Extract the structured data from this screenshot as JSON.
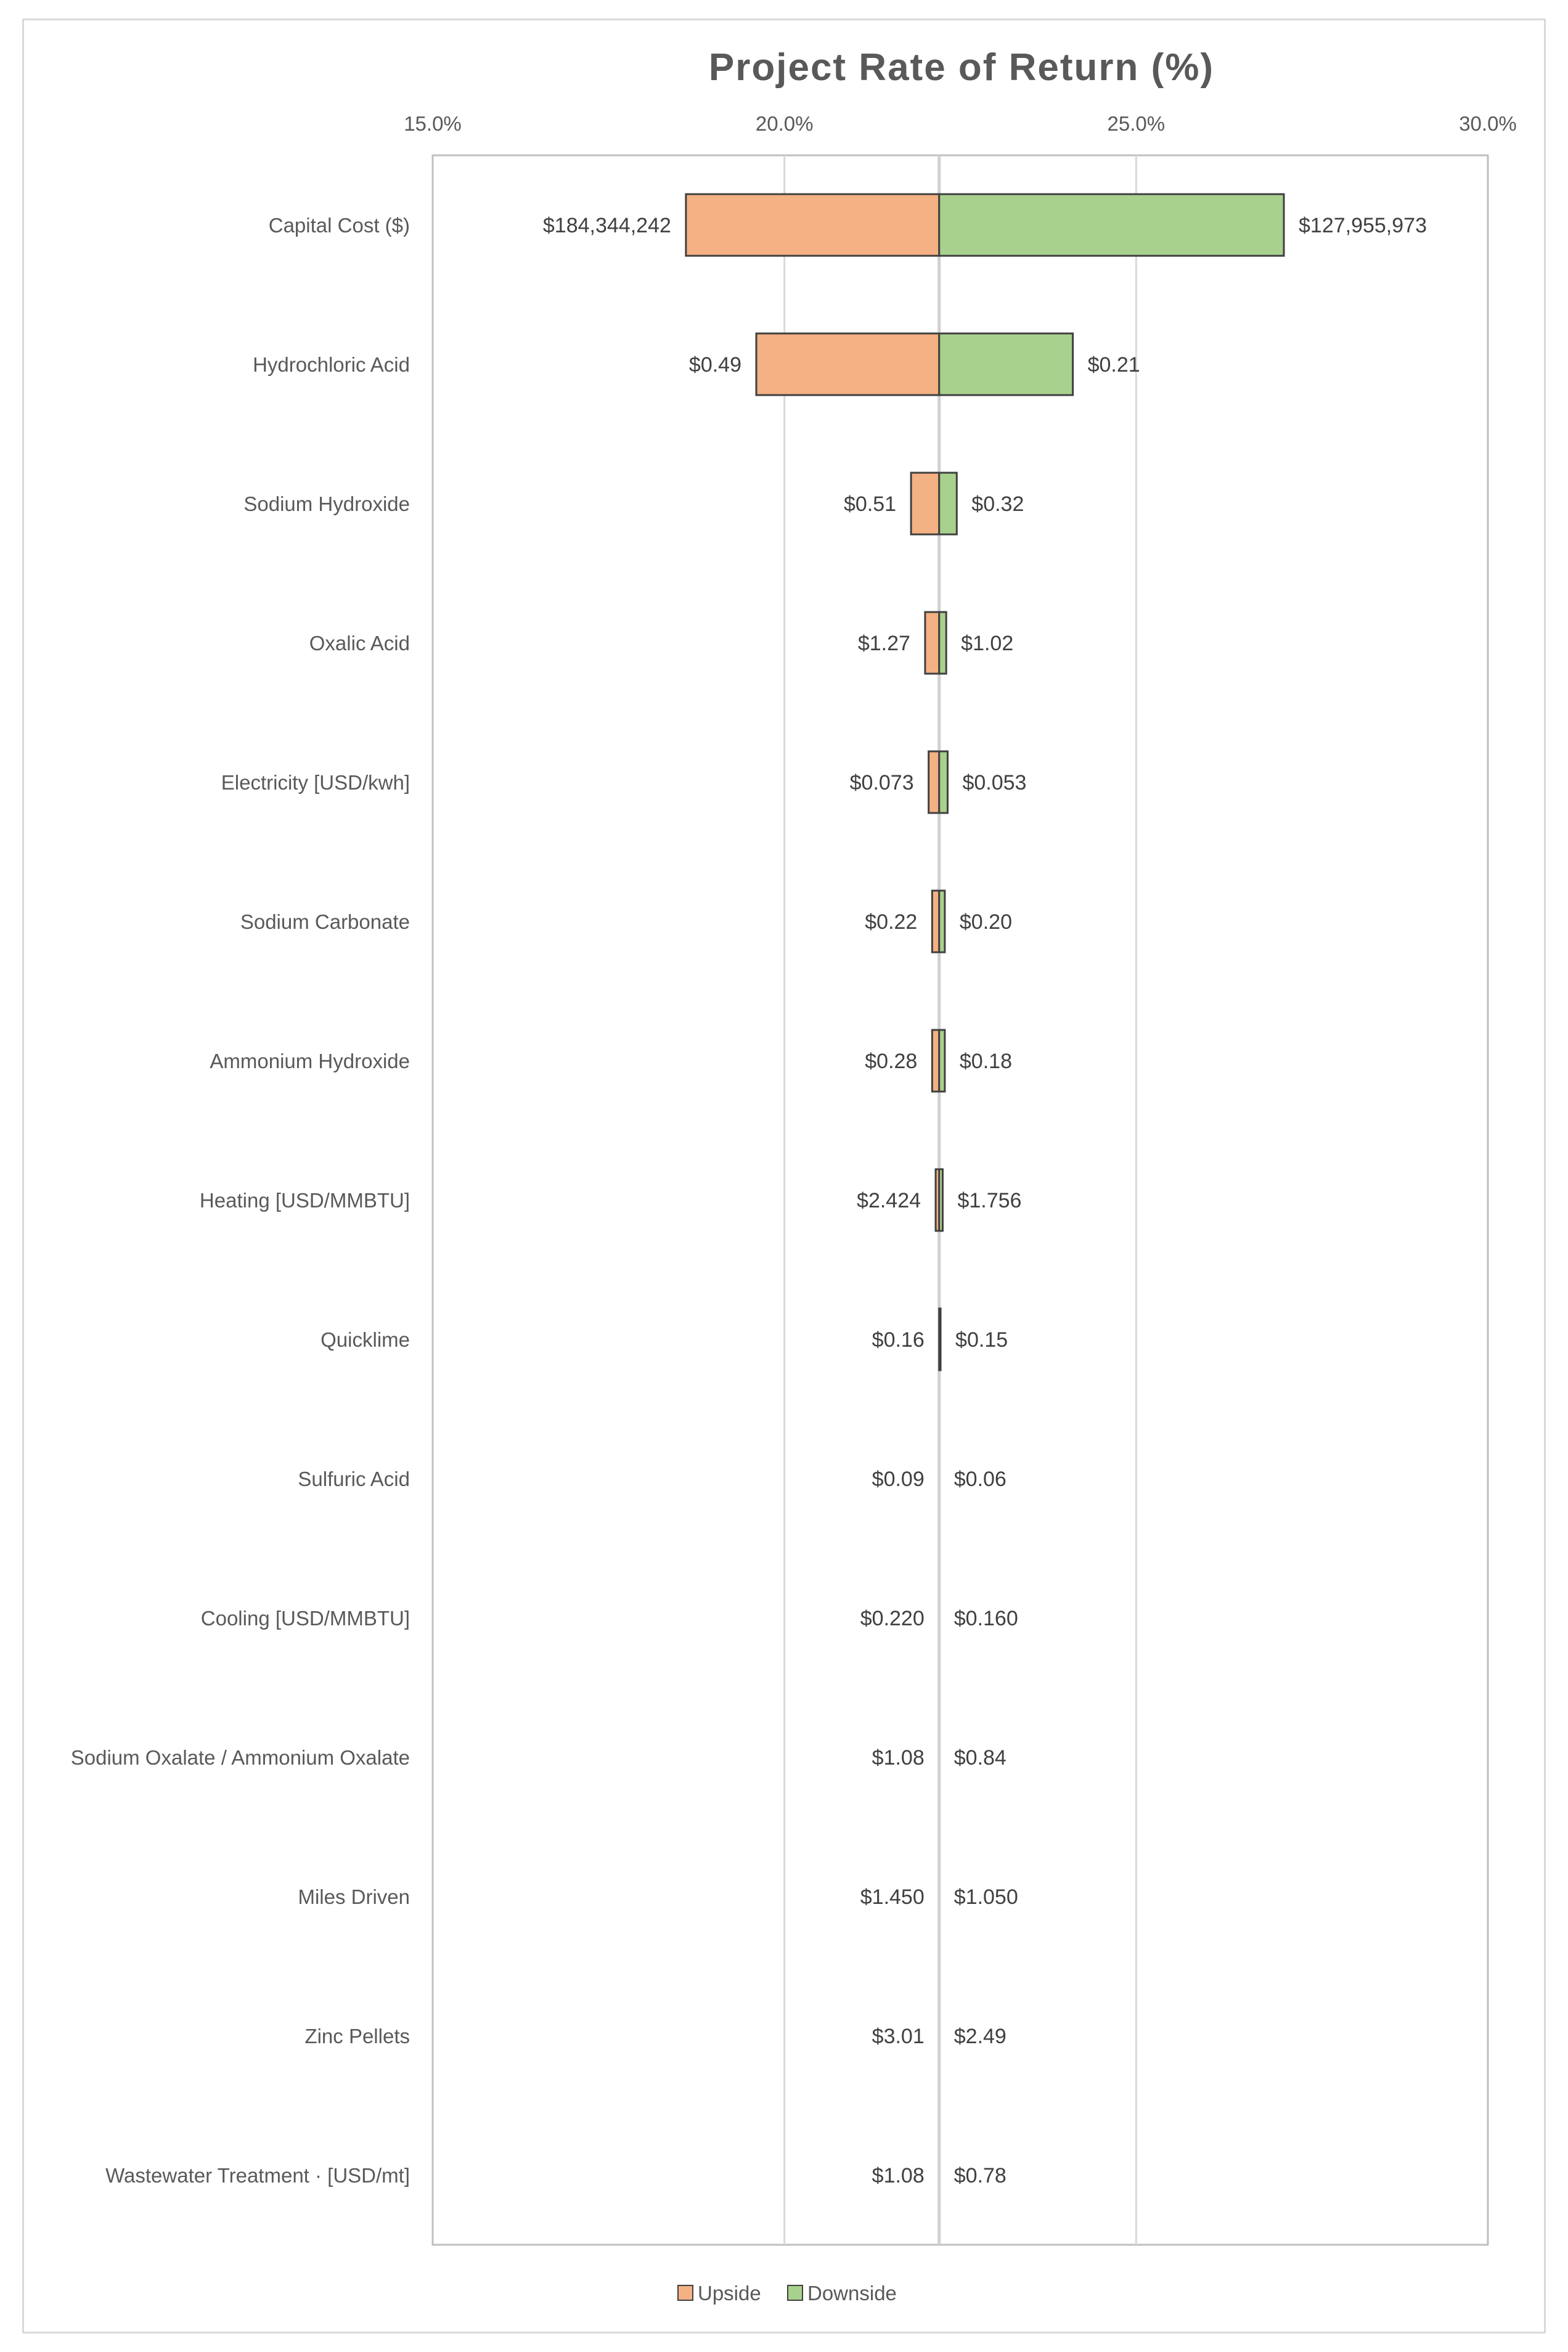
{
  "chart_data": {
    "type": "bar",
    "orientation": "horizontal",
    "subtype": "tornado",
    "title": "Project Rate of Return (%)",
    "x_axis": {
      "position": "top",
      "range": [
        15.0,
        30.0
      ],
      "ticks": [
        "15.0%",
        "20.0%",
        "25.0%",
        "30.0%"
      ],
      "tick_values": [
        15.0,
        20.0,
        25.0,
        30.0
      ],
      "gridlines": true
    },
    "base_value": 22.2,
    "categories": [
      "Capital Cost ($)",
      "Hydrochloric Acid",
      "Sodium Hydroxide",
      "Oxalic Acid",
      "Electricity [USD/kwh]",
      "Sodium Carbonate",
      "Ammonium Hydroxide",
      "Heating [USD/MMBTU]",
      "Quicklime",
      "Sulfuric Acid",
      "Cooling [USD/MMBTU]",
      "Sodium Oxalate / Ammonium Oxalate",
      "Miles Driven",
      "Zinc Pellets",
      "Wastewater Treatment · [USD/mt]"
    ],
    "series": [
      {
        "name": "Upside",
        "color": "#f4b183",
        "values": [
          18.6,
          19.6,
          21.8,
          22.0,
          22.05,
          22.1,
          22.1,
          22.15,
          22.2,
          22.2,
          22.2,
          22.2,
          22.2,
          22.2,
          22.2
        ],
        "labels": [
          "$184,344,242",
          "$0.49",
          "$0.51",
          "$1.27",
          "$0.073",
          "$0.22",
          "$0.28",
          "$2.424",
          "$0.16",
          "$0.09",
          "$0.220",
          "$1.08",
          "$1.450",
          "$3.01",
          "$1.08"
        ]
      },
      {
        "name": "Downside",
        "color": "#a9d18e",
        "values": [
          27.1,
          24.1,
          22.45,
          22.3,
          22.32,
          22.28,
          22.28,
          22.25,
          22.22,
          22.2,
          22.2,
          22.2,
          22.2,
          22.2,
          22.2
        ],
        "labels": [
          "$127,955,973",
          "$0.21",
          "$0.32",
          "$1.02",
          "$0.053",
          "$0.20",
          "$0.18",
          "$1.756",
          "$0.15",
          "$0.06",
          "$0.160",
          "$0.84",
          "$1.050",
          "$2.49",
          "$0.78"
        ]
      }
    ],
    "legend": {
      "position": "bottom",
      "entries": [
        "Upside",
        "Downside"
      ]
    }
  }
}
